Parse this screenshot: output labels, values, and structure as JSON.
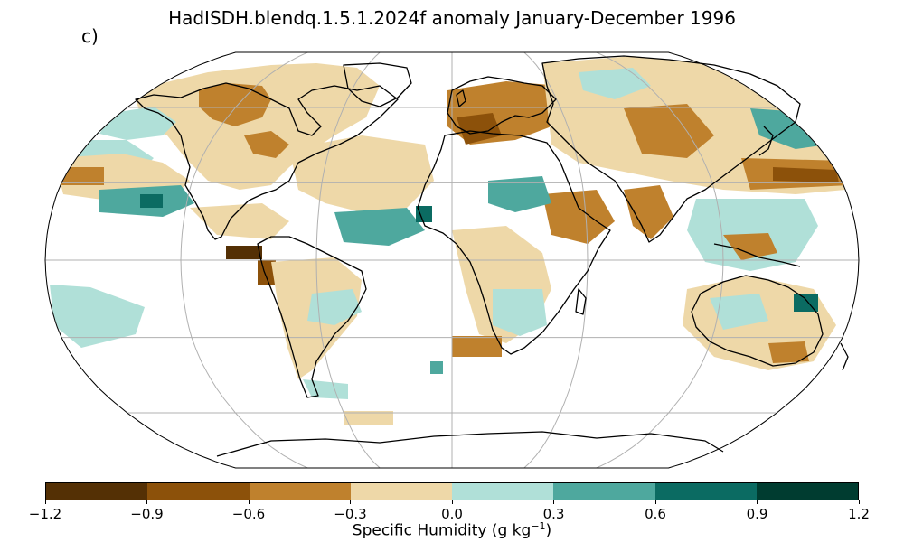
{
  "title": "HadISDH.blendq.1.5.1.2024f anomaly January-December 1996",
  "panel_label": "c)",
  "colorbar": {
    "label_prefix": "Specific Humidity (g kg",
    "label_exponent": "−1",
    "label_suffix": ")",
    "ticks": [
      "−1.2",
      "−0.9",
      "−0.6",
      "−0.3",
      "0.0",
      "0.3",
      "0.6",
      "0.9",
      "1.2"
    ],
    "colors": [
      "#543005",
      "#8c510a",
      "#bf812d",
      "#eed8a8",
      "#b0e0d8",
      "#4ea89e",
      "#0b6b62",
      "#003c30"
    ]
  },
  "map": {
    "projection": "Robinson",
    "grid": "on",
    "ocean_color": "#ffffff"
  }
}
